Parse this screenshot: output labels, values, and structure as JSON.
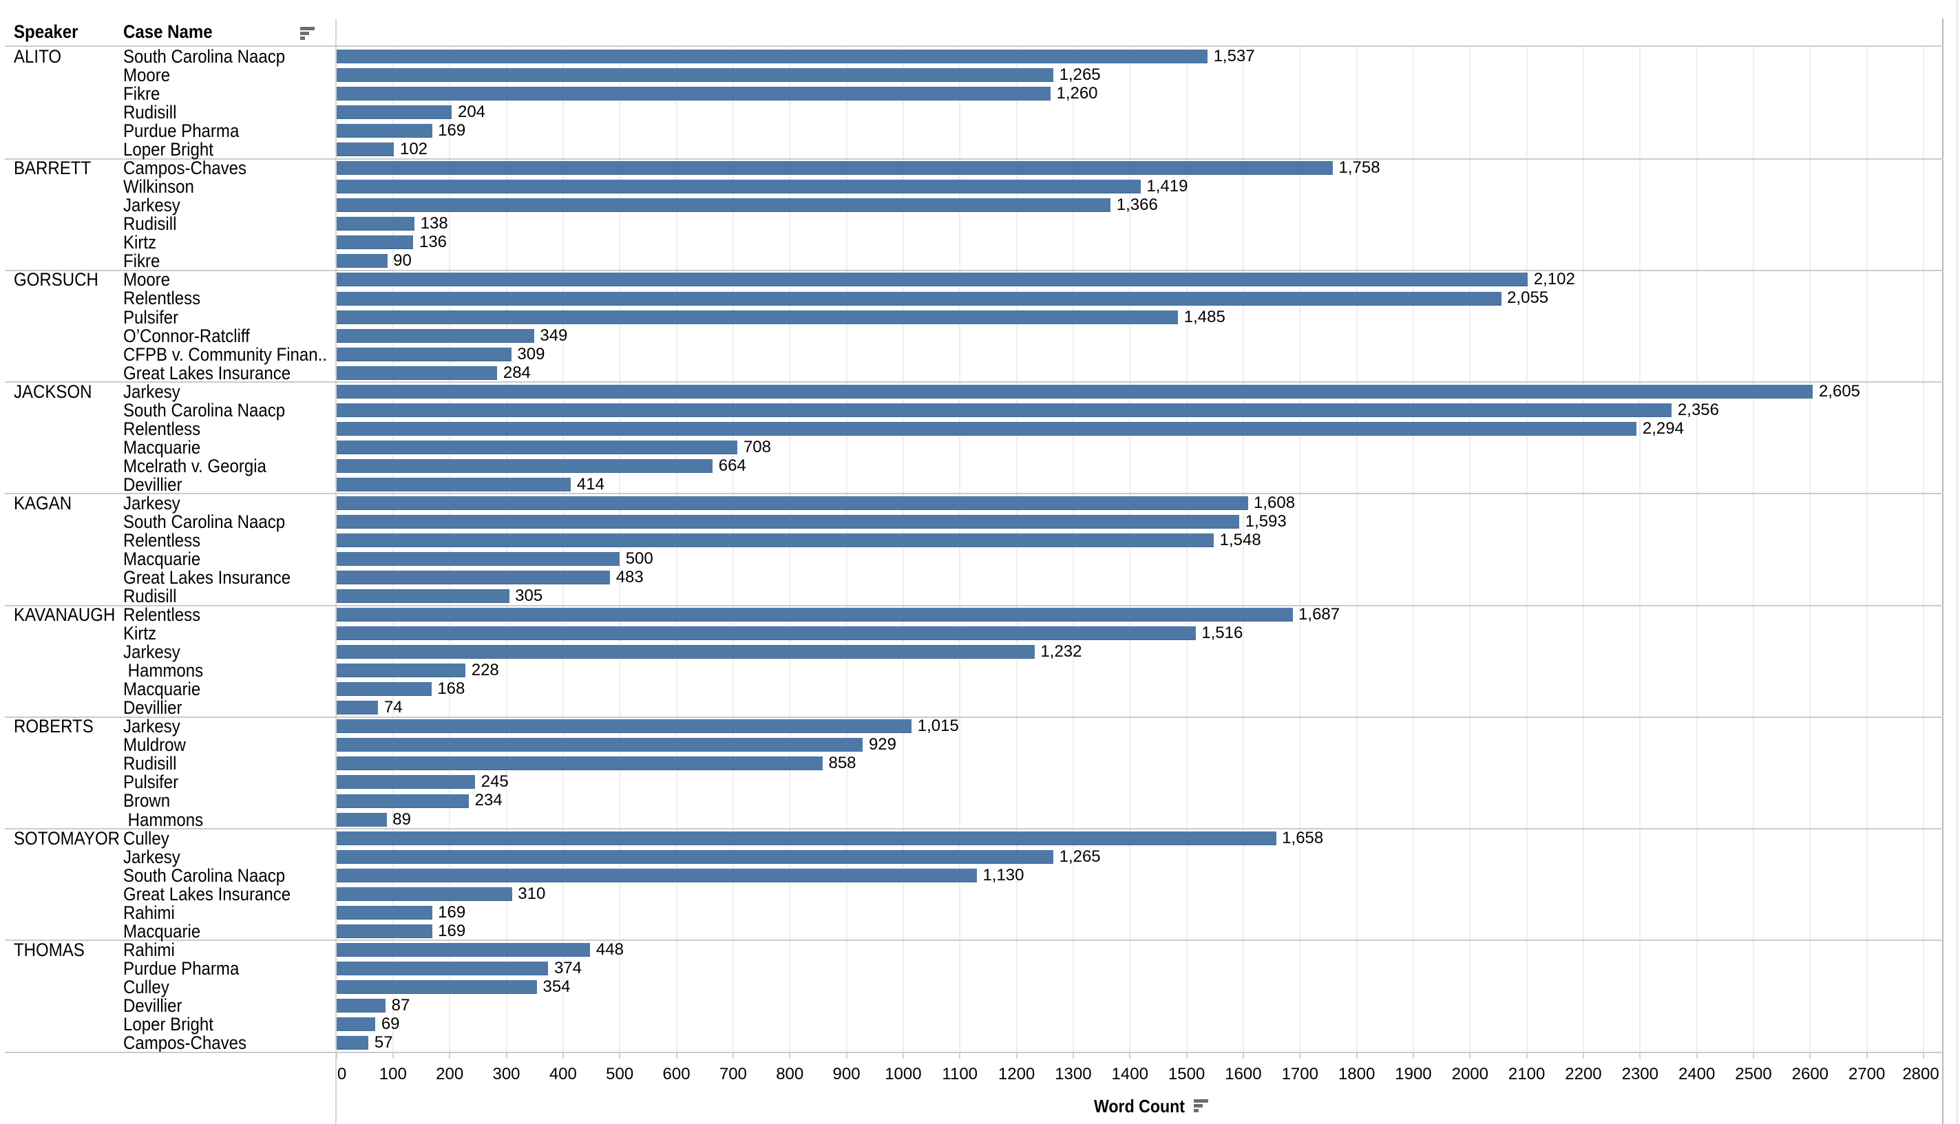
{
  "columns": {
    "speaker": "Speaker",
    "case_name": "Case Name"
  },
  "icons": {
    "case_sort": "sort-descending-icon",
    "axis_sort": "sort-descending-icon"
  },
  "colors": {
    "bar": "#4e79a7",
    "text": "#000000",
    "gridline": "#eeeeee",
    "tick": "#d2d2d2",
    "separator": "#cbcbcb",
    "pane_left_border": "#d5d5d5",
    "pane_right_border": "#b5b5b5",
    "view_right_border": "#e4e4e4"
  },
  "chart_data": {
    "type": "bar",
    "orientation": "horizontal",
    "title": "",
    "xlabel": "Word Count",
    "ylabel": "",
    "row_fields": [
      "Speaker",
      "Case Name"
    ],
    "xlim": [
      0,
      2836
    ],
    "xtick_start": 0,
    "xtick_end": 2800,
    "xtick_step": 100,
    "grid": true,
    "legend": false,
    "value_format": "thousands-comma",
    "groups": [
      {
        "speaker": "ALITO",
        "rows": [
          {
            "case": "South Carolina Naacp",
            "value": 1537,
            "label": "1,537"
          },
          {
            "case": "Moore",
            "value": 1265,
            "label": "1,265"
          },
          {
            "case": "Fikre",
            "value": 1260,
            "label": "1,260"
          },
          {
            "case": "Rudisill",
            "value": 204,
            "label": "204"
          },
          {
            "case": "Purdue Pharma",
            "value": 169,
            "label": "169"
          },
          {
            "case": "Loper Bright",
            "value": 102,
            "label": "102"
          }
        ]
      },
      {
        "speaker": "BARRETT",
        "rows": [
          {
            "case": "Campos-Chaves",
            "value": 1758,
            "label": "1,758"
          },
          {
            "case": "Wilkinson",
            "value": 1419,
            "label": "1,419"
          },
          {
            "case": "Jarkesy",
            "value": 1366,
            "label": "1,366"
          },
          {
            "case": "Rudisill",
            "value": 138,
            "label": "138"
          },
          {
            "case": "Kirtz",
            "value": 136,
            "label": "136"
          },
          {
            "case": "Fikre",
            "value": 90,
            "label": "90"
          }
        ]
      },
      {
        "speaker": "GORSUCH",
        "rows": [
          {
            "case": "Moore",
            "value": 2102,
            "label": "2,102"
          },
          {
            "case": "Relentless",
            "value": 2055,
            "label": "2,055"
          },
          {
            "case": "Pulsifer",
            "value": 1485,
            "label": "1,485"
          },
          {
            "case": "O’Connor-Ratcliff",
            "value": 349,
            "label": "349"
          },
          {
            "case": "CFPB v. Community Finan..",
            "value": 309,
            "label": "309"
          },
          {
            "case": "Great Lakes Insurance",
            "value": 284,
            "label": "284"
          }
        ]
      },
      {
        "speaker": "JACKSON",
        "rows": [
          {
            "case": "Jarkesy",
            "value": 2605,
            "label": "2,605"
          },
          {
            "case": "South Carolina Naacp",
            "value": 2356,
            "label": "2,356"
          },
          {
            "case": "Relentless",
            "value": 2294,
            "label": "2,294"
          },
          {
            "case": "Macquarie",
            "value": 708,
            "label": "708"
          },
          {
            "case": "Mcelrath v. Georgia",
            "value": 664,
            "label": "664"
          },
          {
            "case": "Devillier",
            "value": 414,
            "label": "414"
          }
        ]
      },
      {
        "speaker": "KAGAN",
        "rows": [
          {
            "case": "Jarkesy",
            "value": 1608,
            "label": "1,608"
          },
          {
            "case": "South Carolina Naacp",
            "value": 1593,
            "label": "1,593"
          },
          {
            "case": "Relentless",
            "value": 1548,
            "label": "1,548"
          },
          {
            "case": "Macquarie",
            "value": 500,
            "label": "500"
          },
          {
            "case": "Great Lakes Insurance",
            "value": 483,
            "label": "483"
          },
          {
            "case": "Rudisill",
            "value": 305,
            "label": "305"
          }
        ]
      },
      {
        "speaker": "KAVANAUGH",
        "rows": [
          {
            "case": "Relentless",
            "value": 1687,
            "label": "1,687"
          },
          {
            "case": "Kirtz",
            "value": 1516,
            "label": "1,516"
          },
          {
            "case": "Jarkesy",
            "value": 1232,
            "label": "1,232"
          },
          {
            "case": " Hammons",
            "value": 228,
            "label": "228"
          },
          {
            "case": "Macquarie",
            "value": 168,
            "label": "168"
          },
          {
            "case": "Devillier",
            "value": 74,
            "label": "74"
          }
        ]
      },
      {
        "speaker": "ROBERTS",
        "rows": [
          {
            "case": "Jarkesy",
            "value": 1015,
            "label": "1,015"
          },
          {
            "case": "Muldrow",
            "value": 929,
            "label": "929"
          },
          {
            "case": "Rudisill",
            "value": 858,
            "label": "858"
          },
          {
            "case": "Pulsifer",
            "value": 245,
            "label": "245"
          },
          {
            "case": "Brown",
            "value": 234,
            "label": "234"
          },
          {
            "case": " Hammons",
            "value": 89,
            "label": "89"
          }
        ]
      },
      {
        "speaker": "SOTOMAYOR",
        "rows": [
          {
            "case": "Culley",
            "value": 1658,
            "label": "1,658"
          },
          {
            "case": "Jarkesy",
            "value": 1265,
            "label": "1,265"
          },
          {
            "case": "South Carolina Naacp",
            "value": 1130,
            "label": "1,130"
          },
          {
            "case": "Great Lakes Insurance",
            "value": 310,
            "label": "310"
          },
          {
            "case": "Rahimi",
            "value": 169,
            "label": "169"
          },
          {
            "case": "Macquarie",
            "value": 169,
            "label": "169"
          }
        ]
      },
      {
        "speaker": "THOMAS",
        "rows": [
          {
            "case": "Rahimi",
            "value": 448,
            "label": "448"
          },
          {
            "case": "Purdue Pharma",
            "value": 374,
            "label": "374"
          },
          {
            "case": "Culley",
            "value": 354,
            "label": "354"
          },
          {
            "case": "Devillier",
            "value": 87,
            "label": "87"
          },
          {
            "case": "Loper Bright",
            "value": 69,
            "label": "69"
          },
          {
            "case": "Campos-Chaves",
            "value": 57,
            "label": "57"
          }
        ]
      }
    ]
  }
}
